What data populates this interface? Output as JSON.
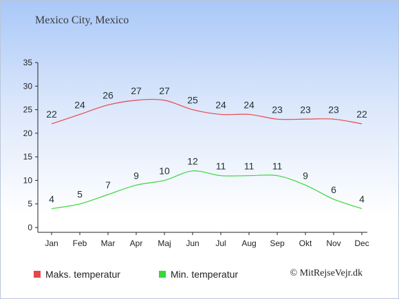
{
  "title": "Mexico City, Mexico",
  "credit": "© MitRejseVejr.dk",
  "chart_data": {
    "type": "line",
    "categories": [
      "Jan",
      "Feb",
      "Mar",
      "Apr",
      "Maj",
      "Jun",
      "Jul",
      "Aug",
      "Sep",
      "Okt",
      "Nov",
      "Dec"
    ],
    "ylim": [
      0,
      35
    ],
    "yticks": [
      0,
      5,
      10,
      15,
      20,
      25,
      30,
      35
    ],
    "legend_position": "bottom-left",
    "grid": false,
    "series": [
      {
        "name": "Maks. temperatur",
        "color": "#e8464b",
        "values": [
          22,
          24,
          26,
          27,
          27,
          25,
          24,
          24,
          23,
          23,
          23,
          22
        ]
      },
      {
        "name": "Min. temperatur",
        "color": "#39d639",
        "values": [
          4,
          5,
          7,
          9,
          10,
          12,
          11,
          11,
          11,
          9,
          6,
          4
        ]
      }
    ]
  }
}
